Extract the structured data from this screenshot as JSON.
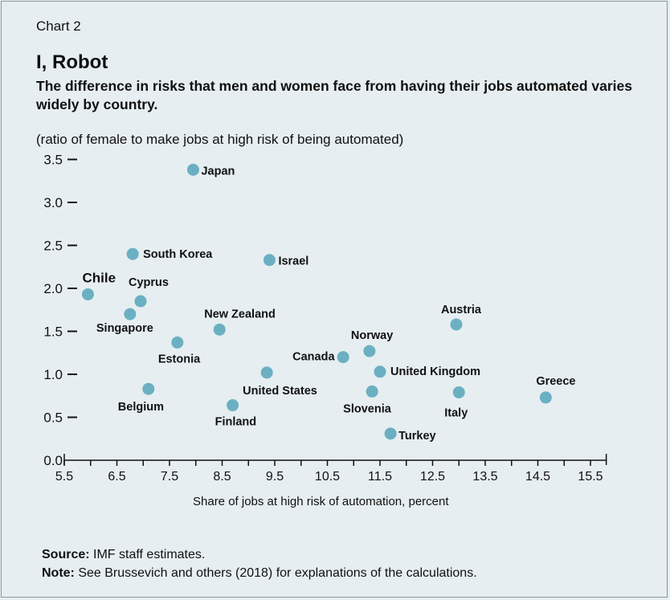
{
  "header": {
    "chart_number": "Chart 2",
    "title": "I, Robot",
    "subtitle": "The difference in risks that men and women face from having their jobs automated varies widely by country.",
    "unit_note": "(ratio of female to make jobs at high risk of being automated)"
  },
  "footer": {
    "source_label": "Source:",
    "source_text": "IMF staff estimates.",
    "note_label": "Note:",
    "note_text": "See Brussevich and others (2018) for explanations of the calculations."
  },
  "colors": {
    "background": "#e6eef1",
    "point": "#6bb0c2",
    "axis": "#111111"
  },
  "chart_data": {
    "type": "scatter",
    "title": "I, Robot",
    "xlabel": "Share of jobs at high risk of automation, percent",
    "ylabel": "(ratio of female to make jobs at high risk of being automated)",
    "xlim": [
      5.5,
      15.8
    ],
    "ylim": [
      0,
      3.6
    ],
    "xticks": [
      "5.5",
      "6.5",
      "7.5",
      "8.5",
      "9.5",
      "10.5",
      "11.5",
      "12.5",
      "13.5",
      "14.5",
      "15.5"
    ],
    "yticks": [
      "0.0",
      "0.5",
      "1.0",
      "1.5",
      "2.0",
      "2.5",
      "3.0",
      "3.5"
    ],
    "grid": false,
    "points": [
      {
        "label": "Japan",
        "x": 7.95,
        "y": 3.38
      },
      {
        "label": "South Korea",
        "x": 6.8,
        "y": 2.4
      },
      {
        "label": "Israel",
        "x": 9.4,
        "y": 2.33
      },
      {
        "label": "Chile",
        "x": 5.95,
        "y": 1.93,
        "highlight": true
      },
      {
        "label": "Cyprus",
        "x": 6.95,
        "y": 1.85
      },
      {
        "label": "Singapore",
        "x": 6.75,
        "y": 1.7
      },
      {
        "label": "New Zealand",
        "x": 8.45,
        "y": 1.52
      },
      {
        "label": "Austria",
        "x": 12.95,
        "y": 1.58
      },
      {
        "label": "Estonia",
        "x": 7.65,
        "y": 1.37
      },
      {
        "label": "Norway",
        "x": 11.3,
        "y": 1.27
      },
      {
        "label": "Canada",
        "x": 10.8,
        "y": 1.2
      },
      {
        "label": "United Kingdom",
        "x": 11.5,
        "y": 1.03
      },
      {
        "label": "United States",
        "x": 9.35,
        "y": 1.02
      },
      {
        "label": "Belgium",
        "x": 7.1,
        "y": 0.83
      },
      {
        "label": "Slovenia",
        "x": 11.35,
        "y": 0.8
      },
      {
        "label": "Italy",
        "x": 13.0,
        "y": 0.79
      },
      {
        "label": "Greece",
        "x": 14.65,
        "y": 0.73
      },
      {
        "label": "Finland",
        "x": 8.7,
        "y": 0.64
      },
      {
        "label": "Turkey",
        "x": 11.7,
        "y": 0.31
      }
    ]
  }
}
